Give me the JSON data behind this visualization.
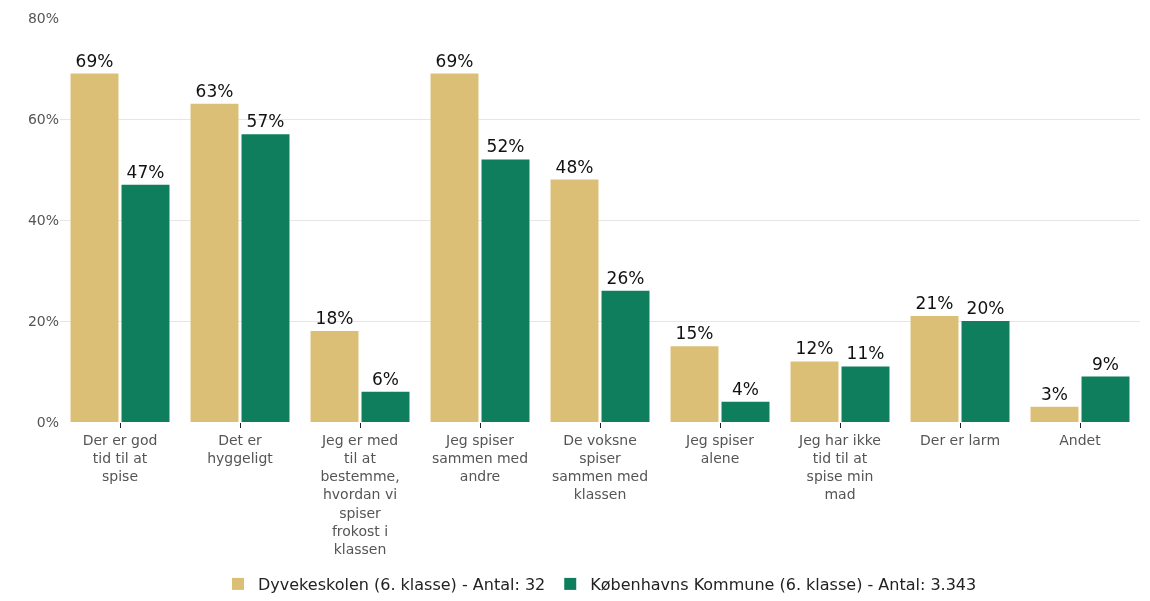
{
  "chart_data": {
    "type": "bar",
    "categories": [
      "Der er god tid til at spise",
      "Det er hyggeligt",
      "Jeg er med til at bestemme, hvordan vi spiser frokost i klassen",
      "Jeg spiser sammen med andre",
      "De voksne spiser sammen med klassen",
      "Jeg spiser alene",
      "Jeg har ikke tid til at spise min mad",
      "Der er larm",
      "Andet"
    ],
    "series": [
      {
        "name": "Dyvekeskolen (6. klasse) - Antal: 32",
        "color": "#dbbf76",
        "values": [
          69,
          63,
          18,
          69,
          48,
          15,
          12,
          21,
          3
        ],
        "value_labels": [
          "69%",
          "63%",
          "18%",
          "69%",
          "48%",
          "15%",
          "12%",
          "21%",
          "3%"
        ]
      },
      {
        "name": "Københavns Kommune (6. klasse) - Antal: 3.343",
        "color": "#0e7e5c",
        "values": [
          47,
          57,
          6,
          52,
          26,
          4,
          11,
          20,
          9
        ],
        "value_labels": [
          "47%",
          "57%",
          "6%",
          "52%",
          "26%",
          "4%",
          "11%",
          "20%",
          "9%"
        ]
      }
    ],
    "ylim": [
      0,
      80
    ],
    "yticks": [
      {
        "value": 0,
        "label": "0%"
      },
      {
        "value": 20,
        "label": "20%"
      },
      {
        "value": 40,
        "label": "40%"
      },
      {
        "value": 60,
        "label": "60%"
      },
      {
        "value": 80,
        "label": "80%"
      }
    ],
    "grid": "y",
    "legend": "bottom"
  }
}
